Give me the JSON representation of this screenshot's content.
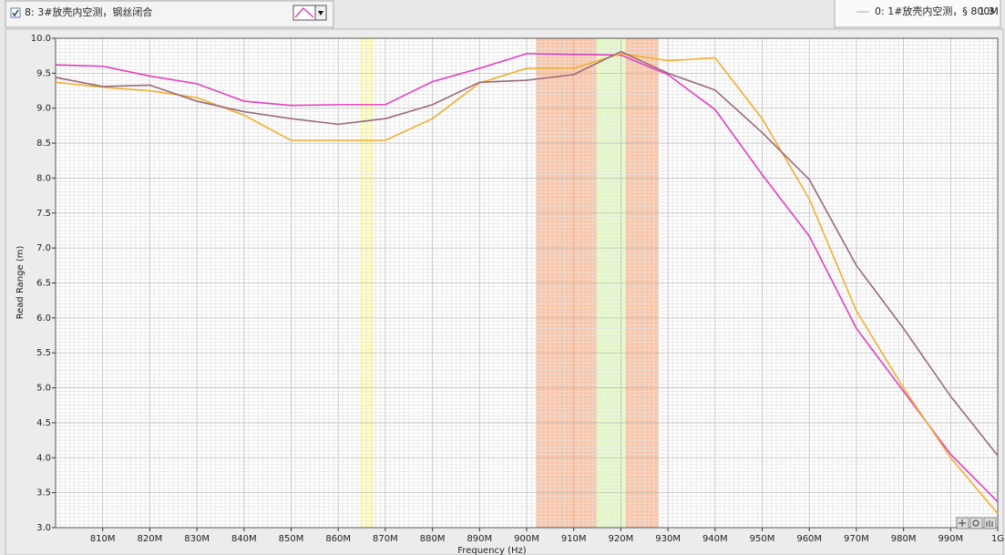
{
  "plot_selector": {
    "label": "8: 3#放壳内空测，钢丝闭合"
  },
  "cursor_panel": {
    "name": "0: 1#放壳内空测，§ 800M",
    "value": "1.3"
  },
  "chart_data": {
    "type": "line",
    "x_label": "Frequency (Hz)",
    "y_label": "Read Range (m)",
    "x": [
      800000000,
      810000000,
      820000000,
      830000000,
      840000000,
      850000000,
      860000000,
      870000000,
      880000000,
      890000000,
      900000000,
      910000000,
      920000000,
      930000000,
      940000000,
      950000000,
      960000000,
      970000000,
      980000000,
      990000000,
      1000000000
    ],
    "series": [
      {
        "color": "#e040c0",
        "values": [
          9.62,
          9.6,
          9.46,
          9.35,
          9.1,
          9.04,
          9.05,
          9.05,
          9.38,
          9.57,
          9.78,
          9.77,
          9.76,
          9.48,
          8.98,
          8.05,
          7.17,
          5.85,
          4.95,
          4.05,
          3.37
        ]
      },
      {
        "color": "#f0b030",
        "values": [
          9.37,
          9.3,
          9.25,
          9.15,
          8.9,
          8.54,
          8.54,
          8.54,
          8.85,
          9.36,
          9.57,
          9.57,
          9.78,
          9.68,
          9.72,
          8.85,
          7.7,
          6.1,
          5.0,
          4.0,
          3.2
        ]
      },
      {
        "color": "#9a6a7a",
        "values": [
          9.44,
          9.31,
          9.33,
          9.1,
          8.95,
          8.85,
          8.77,
          8.85,
          9.05,
          9.37,
          9.4,
          9.48,
          9.81,
          9.5,
          9.26,
          8.65,
          7.98,
          6.75,
          5.85,
          4.88,
          4.03
        ]
      }
    ],
    "bands": [
      {
        "range": [
          864600000,
          867600000
        ],
        "color": "#ffffc0"
      },
      {
        "range": [
          902000000,
          914800000
        ],
        "color": "#fdc4a4"
      },
      {
        "range": [
          914800000,
          921000000
        ],
        "color": "#e6fcc8"
      },
      {
        "range": [
          921000000,
          928000000
        ],
        "color": "#fdc4a4"
      }
    ],
    "xlim": [
      800000000,
      1000000000
    ],
    "ylim": [
      3,
      10
    ],
    "xticks": [
      {
        "value": 810000000,
        "label": "810M"
      },
      {
        "value": 820000000,
        "label": "820M"
      },
      {
        "value": 830000000,
        "label": "830M"
      },
      {
        "value": 840000000,
        "label": "840M"
      },
      {
        "value": 850000000,
        "label": "850M"
      },
      {
        "value": 860000000,
        "label": "860M"
      },
      {
        "value": 870000000,
        "label": "870M"
      },
      {
        "value": 880000000,
        "label": "880M"
      },
      {
        "value": 890000000,
        "label": "890M"
      },
      {
        "value": 900000000,
        "label": "900M"
      },
      {
        "value": 910000000,
        "label": "910M"
      },
      {
        "value": 920000000,
        "label": "920M"
      },
      {
        "value": 930000000,
        "label": "930M"
      },
      {
        "value": 940000000,
        "label": "940M"
      },
      {
        "value": 950000000,
        "label": "950M"
      },
      {
        "value": 960000000,
        "label": "960M"
      },
      {
        "value": 970000000,
        "label": "970M"
      },
      {
        "value": 980000000,
        "label": "980M"
      },
      {
        "value": 990000000,
        "label": "990M"
      },
      {
        "value": 1000000000,
        "label": "1G"
      }
    ],
    "yticks": [
      {
        "value": 3,
        "label": "3.0"
      },
      3.5,
      {
        "value": 4,
        "label": "4.0"
      },
      4.5,
      {
        "value": 5,
        "label": "5.0"
      },
      5.5,
      {
        "value": 6,
        "label": "6.0"
      },
      6.5,
      {
        "value": 7,
        "label": "7.0"
      },
      7.5,
      {
        "value": 8,
        "label": "8.0"
      },
      8.5,
      {
        "value": 9,
        "label": "9.0"
      },
      9.5,
      {
        "value": 10,
        "label": "10.0"
      }
    ],
    "grid": true
  }
}
